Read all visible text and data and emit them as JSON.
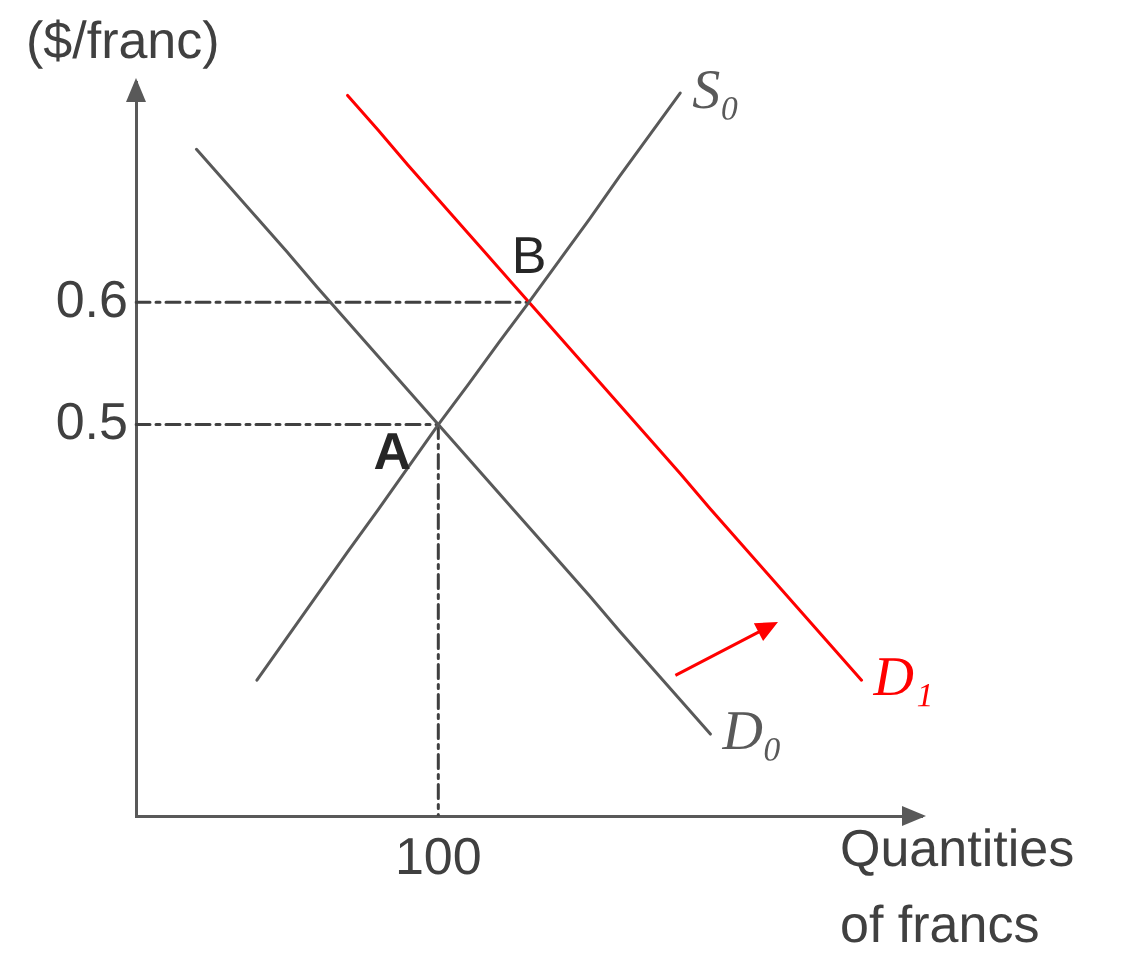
{
  "chart_data": {
    "type": "line",
    "ylabel": "($/franc)",
    "xlabel": "Quantities of francs",
    "categories": [
      null,
      null,
      null,
      null,
      null,
      null,
      null,
      null,
      null,
      null,
      "100",
      null,
      null,
      null,
      null,
      null,
      null,
      null,
      null,
      null,
      null,
      null,
      null,
      null,
      null,
      null,
      null
    ],
    "ylim": [
      0.18,
      0.78
    ],
    "yticks": [
      0.5,
      0.6
    ],
    "marker": "none",
    "annotations": [
      {
        "text": "A",
        "x": "100",
        "y": 0.5
      },
      {
        "text": "B",
        "y": 0.6
      }
    ],
    "series": [
      {
        "name": "S₀",
        "color": "#595959",
        "values": [
          null,
          null,
          null,
          null,
          0.291,
          0.326,
          0.361,
          0.396,
          0.43,
          0.465,
          0.5,
          0.533,
          0.567,
          0.6,
          0.634,
          0.668,
          0.703,
          0.737,
          0.771,
          null,
          null,
          null,
          null,
          null,
          null,
          null,
          null
        ]
      },
      {
        "name": "D₀",
        "color": "#595959",
        "values": [
          null,
          null,
          0.725,
          0.697,
          0.669,
          0.641,
          0.612,
          0.584,
          0.556,
          0.528,
          0.5,
          0.472,
          0.444,
          0.416,
          0.388,
          0.36,
          0.331,
          0.303,
          0.275,
          0.247,
          null,
          null,
          null,
          null,
          null,
          null,
          null
        ]
      },
      {
        "name": "D₁",
        "color": "#ff0000",
        "values": [
          null,
          null,
          null,
          null,
          null,
          null,
          null,
          0.769,
          0.741,
          0.712,
          0.684,
          0.656,
          0.628,
          0.6,
          0.572,
          0.544,
          0.516,
          0.488,
          0.46,
          0.431,
          0.403,
          0.375,
          0.347,
          0.319,
          0.291,
          null,
          null
        ]
      },
      {
        "color": "#404040",
        "line_style": "dashed",
        "values": [
          0.6,
          0.6,
          0.6,
          0.6,
          0.6,
          0.6,
          0.6,
          0.6,
          0.6,
          0.6,
          0.6,
          0.6,
          0.6,
          0.6,
          null,
          null,
          null,
          null,
          null,
          null,
          null,
          null,
          null,
          null,
          null,
          null,
          null
        ]
      },
      {
        "color": "#404040",
        "line_style": "dashed",
        "values": [
          0.5,
          0.5,
          0.5,
          0.5,
          0.5,
          0.5,
          0.5,
          0.5,
          0.5,
          0.5,
          0.5,
          null,
          null,
          null,
          null,
          null,
          null,
          null,
          null,
          null,
          null,
          null,
          null,
          null,
          null,
          null,
          null
        ]
      },
      {
        "color": "#404040",
        "line_style": "dashed",
        "x": [
          "100",
          "100"
        ],
        "values": [
          0.5,
          0.18
        ]
      }
    ]
  }
}
